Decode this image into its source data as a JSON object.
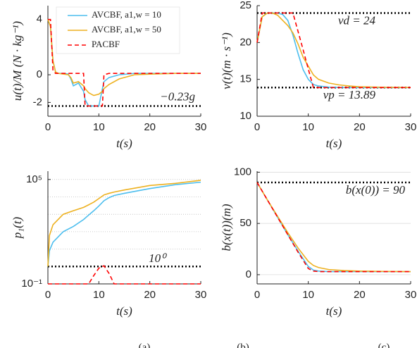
{
  "chart_data": [
    {
      "type": "line",
      "ylabel": "u(t)/M (N · kg⁻¹)",
      "xlabel": "t(s)",
      "x": [
        0,
        0.5,
        1,
        1.5,
        2,
        3,
        4,
        4.5,
        5,
        6,
        7,
        7.3,
        8,
        9,
        10,
        10.7,
        11,
        12,
        14,
        17,
        20,
        25,
        30
      ],
      "xlim": [
        0,
        30
      ],
      "xticks": [
        0,
        10,
        20,
        30
      ],
      "ylim": [
        -3,
        5
      ],
      "yticks": [
        -2,
        0,
        4
      ],
      "legend": "upper center",
      "hlines": [
        {
          "value": -2.26,
          "label": "−0.23g"
        }
      ],
      "series": [
        {
          "name": "AVCBF, a1,w = 10",
          "color": "#4dbeee",
          "dash": false,
          "values": [
            4,
            3.5,
            1,
            0.2,
            0.1,
            0.1,
            0.05,
            -0.3,
            -0.8,
            -0.6,
            -1.2,
            -1.8,
            -2.26,
            -2.26,
            -2.26,
            -1,
            -0.5,
            -0.2,
            0,
            0.1,
            0.1,
            0.1,
            0.1
          ]
        },
        {
          "name": "AVCBF, a1,w = 50",
          "color": "#edb120",
          "dash": false,
          "values": [
            4,
            3.5,
            1,
            0.2,
            0.1,
            0.05,
            0,
            -0.2,
            -0.6,
            -0.5,
            -0.8,
            -1,
            -1.3,
            -1.5,
            -1.4,
            -1.2,
            -1,
            -0.7,
            -0.3,
            0,
            0.05,
            0.1,
            0.1
          ]
        },
        {
          "name": "PACBF",
          "color": "#ff0000",
          "dash": true,
          "values": [
            4,
            4,
            0.3,
            0.1,
            0.1,
            0.1,
            0.1,
            0.1,
            0.1,
            0.1,
            0.1,
            -2.26,
            -2.26,
            -2.26,
            -2.26,
            -2.26,
            0,
            0.1,
            0.1,
            0.1,
            0.1,
            0.1,
            0.1
          ]
        }
      ]
    },
    {
      "type": "line",
      "ylabel": "v(t)(m · s⁻¹)",
      "xlabel": "t(s)",
      "x": [
        0,
        1,
        2,
        3,
        4,
        5,
        6,
        7,
        8,
        9,
        10,
        11,
        12,
        14,
        16,
        18,
        20,
        25,
        30
      ],
      "xlim": [
        0,
        30
      ],
      "xticks": [
        0,
        10,
        20,
        30
      ],
      "ylim": [
        10,
        25
      ],
      "yticks": [
        10,
        15,
        20,
        25
      ],
      "hlines": [
        {
          "value": 24,
          "label": "vd = 24"
        },
        {
          "value": 13.89,
          "label": "vp = 13.89"
        }
      ],
      "series": [
        {
          "color": "#4dbeee",
          "dash": false,
          "values": [
            20,
            23.5,
            24,
            24,
            24,
            23.8,
            23,
            21,
            18.5,
            16.3,
            15,
            14.3,
            14.1,
            13.95,
            13.9,
            13.89,
            13.89,
            13.89,
            13.89
          ]
        },
        {
          "color": "#edb120",
          "dash": false,
          "values": [
            20,
            23.5,
            24,
            24,
            23.7,
            23,
            22.3,
            21.3,
            19.8,
            18,
            16.8,
            15.6,
            15,
            14.5,
            14.25,
            14.1,
            14,
            13.93,
            13.9
          ]
        },
        {
          "color": "#ff0000",
          "dash": true,
          "values": [
            20,
            24,
            24,
            24,
            24,
            24,
            24,
            24,
            21.5,
            19,
            16.4,
            13.89,
            13.89,
            13.89,
            13.89,
            13.89,
            13.89,
            13.89,
            13.89
          ]
        }
      ]
    },
    {
      "type": "line",
      "ylabel": "p₁(t)",
      "xlabel": "t(s)",
      "yscale": "log",
      "x": [
        0,
        0.3,
        1,
        3,
        5,
        7,
        8,
        9,
        10,
        11,
        12,
        13,
        15,
        20,
        25,
        30
      ],
      "xlim": [
        0,
        30
      ],
      "xticks": [
        0,
        10,
        20,
        30
      ],
      "ylim": [
        0.1,
        300000
      ],
      "yticks": [
        {
          "value": 0.1,
          "label": "10⁻¹"
        },
        {
          "value": 100000,
          "label": "10⁵"
        }
      ],
      "minor_grid": [
        10,
        100,
        1000,
        10000,
        100000
      ],
      "hlines": [
        {
          "value": 1,
          "label": "10⁰"
        }
      ],
      "series": [
        {
          "color": "#4dbeee",
          "dash": false,
          "values": [
            1,
            8,
            25,
            100,
            200,
            500,
            900,
            1600,
            3000,
            6000,
            9000,
            12000,
            16000,
            30000,
            50000,
            70000
          ]
        },
        {
          "color": "#edb120",
          "dash": false,
          "values": [
            1,
            60,
            250,
            1000,
            1600,
            2500,
            3500,
            5000,
            8000,
            13000,
            16000,
            19000,
            25000,
            45000,
            60000,
            90000
          ]
        },
        {
          "color": "#ff0000",
          "dash": true,
          "values": [
            0.1,
            0.1,
            0.1,
            0.1,
            0.1,
            0.1,
            0.1,
            0.3,
            0.8,
            1.1,
            0.4,
            0.1,
            0.1,
            0.1,
            0.1,
            0.1
          ]
        }
      ]
    },
    {
      "type": "line",
      "ylabel": "b(x(t))(m)",
      "xlabel": "t(s)",
      "x": [
        0,
        2,
        4,
        6,
        8,
        10,
        11,
        12,
        14,
        17,
        20,
        25,
        30
      ],
      "xlim": [
        0,
        30
      ],
      "xticks": [
        0,
        10,
        20,
        30
      ],
      "ylim": [
        -9,
        101
      ],
      "yticks": [
        0,
        50,
        100
      ],
      "grid": true,
      "hlines": [
        {
          "value": 90,
          "label": "b(x(0)) = 90"
        }
      ],
      "series": [
        {
          "color": "#4dbeee",
          "dash": false,
          "values": [
            90,
            73,
            56,
            39,
            23,
            8,
            4.5,
            3.5,
            3,
            3,
            3,
            3,
            3
          ]
        },
        {
          "color": "#edb120",
          "dash": false,
          "values": [
            90,
            73,
            57,
            41,
            26,
            13,
            9,
            7,
            5,
            4,
            3.5,
            3.2,
            3
          ]
        },
        {
          "color": "#ff0000",
          "dash": true,
          "values": [
            90,
            73,
            56,
            39,
            22,
            6,
            3.5,
            3,
            3,
            3,
            3,
            3,
            3
          ]
        }
      ]
    }
  ],
  "captions": [
    "(a)",
    "(b)",
    "(c)"
  ]
}
